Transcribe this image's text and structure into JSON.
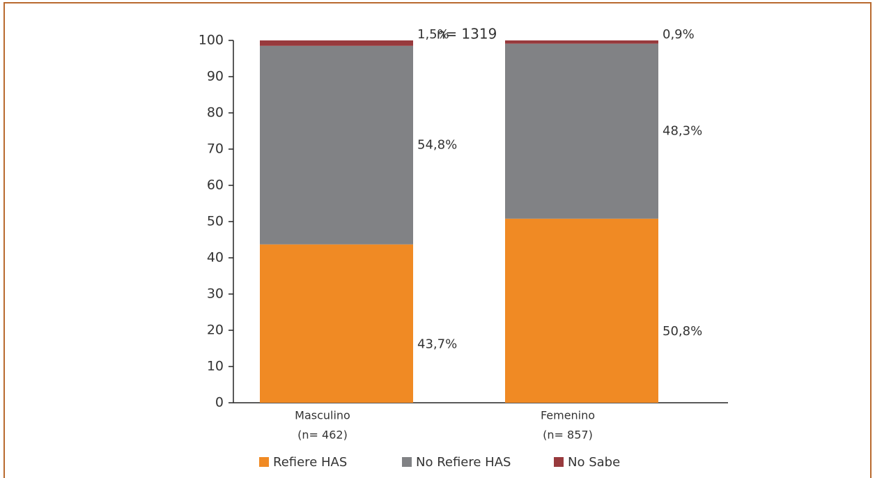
{
  "chart_data": {
    "type": "stacked_bar",
    "title": "n= 1319",
    "categories": [
      "Masculino",
      "Femenino"
    ],
    "category_n": [
      "(n= 462)",
      "(n= 857)"
    ],
    "series": [
      {
        "name": "Refiere HAS",
        "color": "#f08a24",
        "values": [
          43.7,
          50.8
        ],
        "value_labels": [
          "43,7%",
          "50,8%"
        ]
      },
      {
        "name": "No Refiere HAS",
        "color": "#818285",
        "values": [
          54.8,
          48.3
        ],
        "value_labels": [
          "54,8%",
          "48,3%"
        ]
      },
      {
        "name": "No Sabe",
        "color": "#983a3d",
        "values": [
          1.5,
          0.9
        ],
        "value_labels": [
          "1,5%",
          "0,9%"
        ]
      }
    ],
    "ylim": [
      0,
      100
    ],
    "yticks": [
      0,
      10,
      20,
      30,
      40,
      50,
      60,
      70,
      80,
      90,
      100
    ],
    "legend": "bottom"
  }
}
